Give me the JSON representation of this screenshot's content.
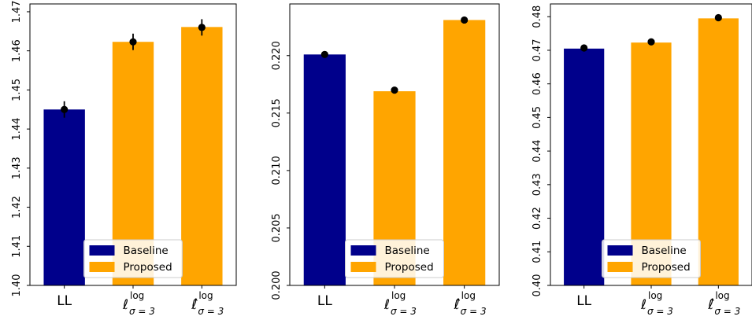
{
  "chart_data": [
    {
      "type": "bar",
      "categories": [
        "LL",
        "ℓ^log_σ=3",
        "ℓ̂^log_σ=3"
      ],
      "category_labels": [
        {
          "base": "LL",
          "sup": "",
          "sub": ""
        },
        {
          "base": "ℓ",
          "sup": "log",
          "sub": "σ = 3"
        },
        {
          "base": "ℓ̂",
          "sup": "log",
          "sub": "σ = 3"
        }
      ],
      "series": [
        {
          "name": "Baseline",
          "values": [
            1.445,
            null,
            null
          ]
        },
        {
          "name": "Proposed",
          "values": [
            null,
            1.4623,
            1.4661
          ]
        }
      ],
      "points": [
        1.445,
        1.4623,
        1.466
      ],
      "errors": [
        0.0021,
        0.0021,
        0.0021
      ],
      "ylim": [
        1.4,
        1.472
      ],
      "yticks": [
        1.4,
        1.41,
        1.42,
        1.43,
        1.44,
        1.45,
        1.46,
        1.47
      ],
      "ytick_labels": [
        "1.40",
        "1.41",
        "1.42",
        "1.43",
        "1.44",
        "1.45",
        "1.46",
        "1.47"
      ],
      "legend_loc": "lower-center"
    },
    {
      "type": "bar",
      "categories": [
        "LL",
        "ℓ^log_σ=3",
        "ℓ̂^log_σ=3"
      ],
      "category_labels": [
        {
          "base": "LL",
          "sup": "",
          "sub": ""
        },
        {
          "base": "ℓ",
          "sup": "log",
          "sub": "σ = 3"
        },
        {
          "base": "ℓ̂",
          "sup": "log",
          "sub": "σ = 3"
        }
      ],
      "series": [
        {
          "name": "Baseline",
          "values": [
            0.2201,
            null,
            null
          ]
        },
        {
          "name": "Proposed",
          "values": [
            null,
            0.2169,
            0.2231
          ]
        }
      ],
      "points": [
        0.2201,
        0.217,
        0.2231
      ],
      "errors": [
        0.0001,
        0.0001,
        0.0001
      ],
      "ylim": [
        0.2,
        0.2245
      ],
      "yticks": [
        0.2,
        0.205,
        0.21,
        0.215,
        0.22
      ],
      "ytick_labels": [
        "0.200",
        "0.205",
        "0.210",
        "0.215",
        "0.220"
      ],
      "legend_loc": "lower-center"
    },
    {
      "type": "bar",
      "categories": [
        "LL",
        "ℓ^log_σ=3",
        "ℓ̂^log_σ=3"
      ],
      "category_labels": [
        {
          "base": "LL",
          "sup": "",
          "sub": ""
        },
        {
          "base": "ℓ",
          "sup": "log",
          "sub": "σ = 3"
        },
        {
          "base": "ℓ̂",
          "sup": "log",
          "sub": "σ = 3"
        }
      ],
      "series": [
        {
          "name": "Baseline",
          "values": [
            0.4705,
            null,
            null
          ]
        },
        {
          "name": "Proposed",
          "values": [
            null,
            0.4723,
            0.4795
          ]
        }
      ],
      "points": [
        0.4707,
        0.4725,
        0.4797
      ],
      "errors": [
        0.0002,
        0.0002,
        0.0002
      ],
      "ylim": [
        0.4,
        0.4838
      ],
      "yticks": [
        0.4,
        0.41,
        0.42,
        0.43,
        0.44,
        0.45,
        0.46,
        0.47,
        0.48
      ],
      "ytick_labels": [
        "0.40",
        "0.41",
        "0.42",
        "0.43",
        "0.44",
        "0.45",
        "0.46",
        "0.47",
        "0.48"
      ],
      "legend_loc": "lower-center"
    }
  ],
  "colors": {
    "baseline": "#00008b",
    "proposed": "#ffa500",
    "point": "#000000"
  },
  "legend": {
    "baseline_label": "Baseline",
    "proposed_label": "Proposed"
  }
}
